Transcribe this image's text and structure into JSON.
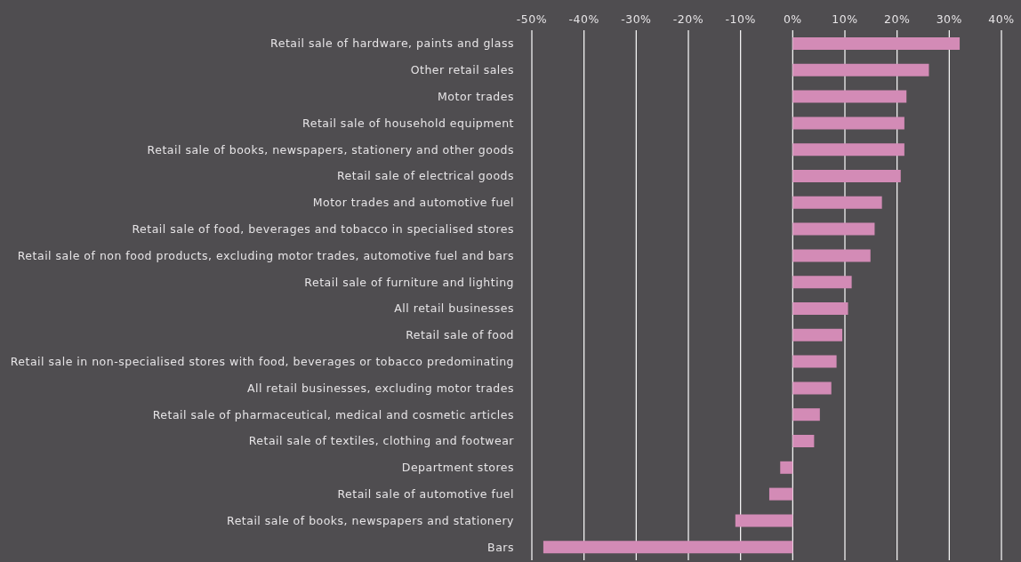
{
  "chart_data": {
    "type": "bar",
    "orientation": "horizontal",
    "categories": [
      "Retail sale of hardware, paints and glass",
      "Other retail sales",
      "Motor trades",
      "Retail sale of household equipment",
      "Retail sale of books, newspapers, stationery and other goods",
      "Retail sale of electrical goods",
      "Motor trades and automotive fuel",
      "Retail sale of food, beverages and tobacco in specialised stores",
      "Retail sale of non food products, excluding motor trades, automotive fuel and bars",
      "Retail sale of furniture and lighting",
      "All retail businesses",
      "Retail sale of food",
      "Retail sale in non-specialised stores with food, beverages or tobacco predominating",
      "All retail businesses, excluding motor trades",
      "Retail sale of pharmaceutical, medical and cosmetic articles",
      "Retail sale of textiles, clothing and footwear",
      "Department stores",
      "Retail sale of automotive fuel",
      "Retail sale of books, newspapers and stationery",
      "Bars"
    ],
    "values": [
      32,
      26.1,
      21.8,
      21.4,
      21.4,
      20.7,
      17.1,
      15.7,
      14.9,
      11.3,
      10.6,
      9.5,
      8.4,
      7.4,
      5.2,
      4.1,
      -2.4,
      -4.5,
      -11,
      -47.8
    ],
    "color": "#d38bb6",
    "xlim": [
      -50,
      40
    ],
    "xticks": [
      {
        "value": -50,
        "label": "-50%"
      },
      {
        "value": -40,
        "label": "-40%"
      },
      {
        "value": -30,
        "label": "-30%"
      },
      {
        "value": -20,
        "label": "-20%"
      },
      {
        "value": -10,
        "label": "-10%"
      },
      {
        "value": 0,
        "label": "0%"
      },
      {
        "value": 10,
        "label": "10%"
      },
      {
        "value": 20,
        "label": "20%"
      },
      {
        "value": 30,
        "label": "30%"
      },
      {
        "value": 40,
        "label": "40%"
      }
    ],
    "grid": "x"
  }
}
